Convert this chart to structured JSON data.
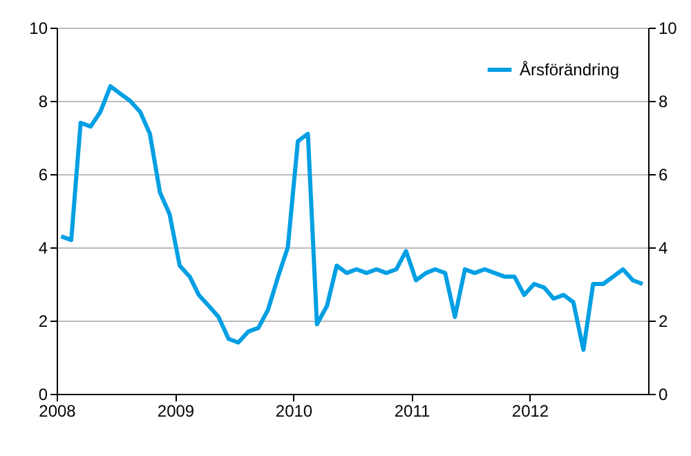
{
  "chart_data": {
    "type": "line",
    "x": [
      "2008-01-15",
      "2008-02-15",
      "2008-03-15",
      "2008-04-15",
      "2008-05-15",
      "2008-06-15",
      "2008-07-15",
      "2008-08-15",
      "2008-09-15",
      "2008-10-15",
      "2008-11-15",
      "2008-12-15",
      "2009-01-15",
      "2009-02-15",
      "2009-03-15",
      "2009-04-15",
      "2009-05-15",
      "2009-06-15",
      "2009-07-15",
      "2009-08-15",
      "2009-09-15",
      "2009-10-15",
      "2009-11-15",
      "2009-12-15",
      "2010-01-15",
      "2010-02-15",
      "2010-03-15",
      "2010-04-15",
      "2010-05-15",
      "2010-06-15",
      "2010-07-15",
      "2010-08-15",
      "2010-09-15",
      "2010-10-15",
      "2010-11-15",
      "2010-12-15",
      "2011-01-15",
      "2011-02-15",
      "2011-03-15",
      "2011-04-15",
      "2011-05-15",
      "2011-06-15",
      "2011-07-15",
      "2011-08-15",
      "2011-09-15",
      "2011-10-15",
      "2011-11-15",
      "2011-12-15",
      "2012-01-15",
      "2012-02-15",
      "2012-03-15",
      "2012-04-15",
      "2012-05-15",
      "2012-06-15",
      "2012-07-15",
      "2012-08-15",
      "2012-09-15",
      "2012-10-15",
      "2012-11-15",
      "2012-12-15"
    ],
    "series": [
      {
        "name": "Årsförändring",
        "color": "#009fe3",
        "values": [
          4.3,
          4.2,
          7.4,
          7.3,
          7.7,
          8.4,
          8.2,
          8.0,
          7.7,
          7.1,
          5.5,
          4.9,
          3.5,
          3.2,
          2.7,
          2.4,
          2.1,
          1.5,
          1.4,
          1.7,
          1.8,
          2.3,
          3.2,
          4.0,
          6.9,
          7.1,
          1.9,
          2.4,
          3.5,
          3.3,
          3.4,
          3.3,
          3.4,
          3.3,
          3.4,
          3.9,
          3.1,
          3.3,
          3.4,
          3.3,
          2.1,
          3.4,
          3.3,
          3.4,
          3.3,
          3.2,
          3.2,
          2.7,
          3.0,
          2.9,
          2.6,
          2.7,
          2.5,
          1.2,
          3.0,
          3.0,
          3.2,
          3.4,
          3.1,
          3.0
        ]
      }
    ],
    "xlim": [
      "2008-01-01",
      "2013-01-01"
    ],
    "xticks": [
      {
        "value": "2008-01-01",
        "label": "2008"
      },
      {
        "value": "2009-01-01",
        "label": "2009"
      },
      {
        "value": "2010-01-01",
        "label": "2010"
      },
      {
        "value": "2011-01-01",
        "label": "2011"
      },
      {
        "value": "2012-01-01",
        "label": "2012"
      }
    ],
    "ylim": [
      0,
      10
    ],
    "yticks": [
      0,
      2,
      4,
      6,
      8,
      10
    ],
    "y2lim": [
      0,
      10
    ],
    "y2ticks": [
      0,
      2,
      4,
      6,
      8,
      10
    ],
    "grid": "y",
    "legend": "top right",
    "line_style": "solid",
    "marker": "none"
  }
}
